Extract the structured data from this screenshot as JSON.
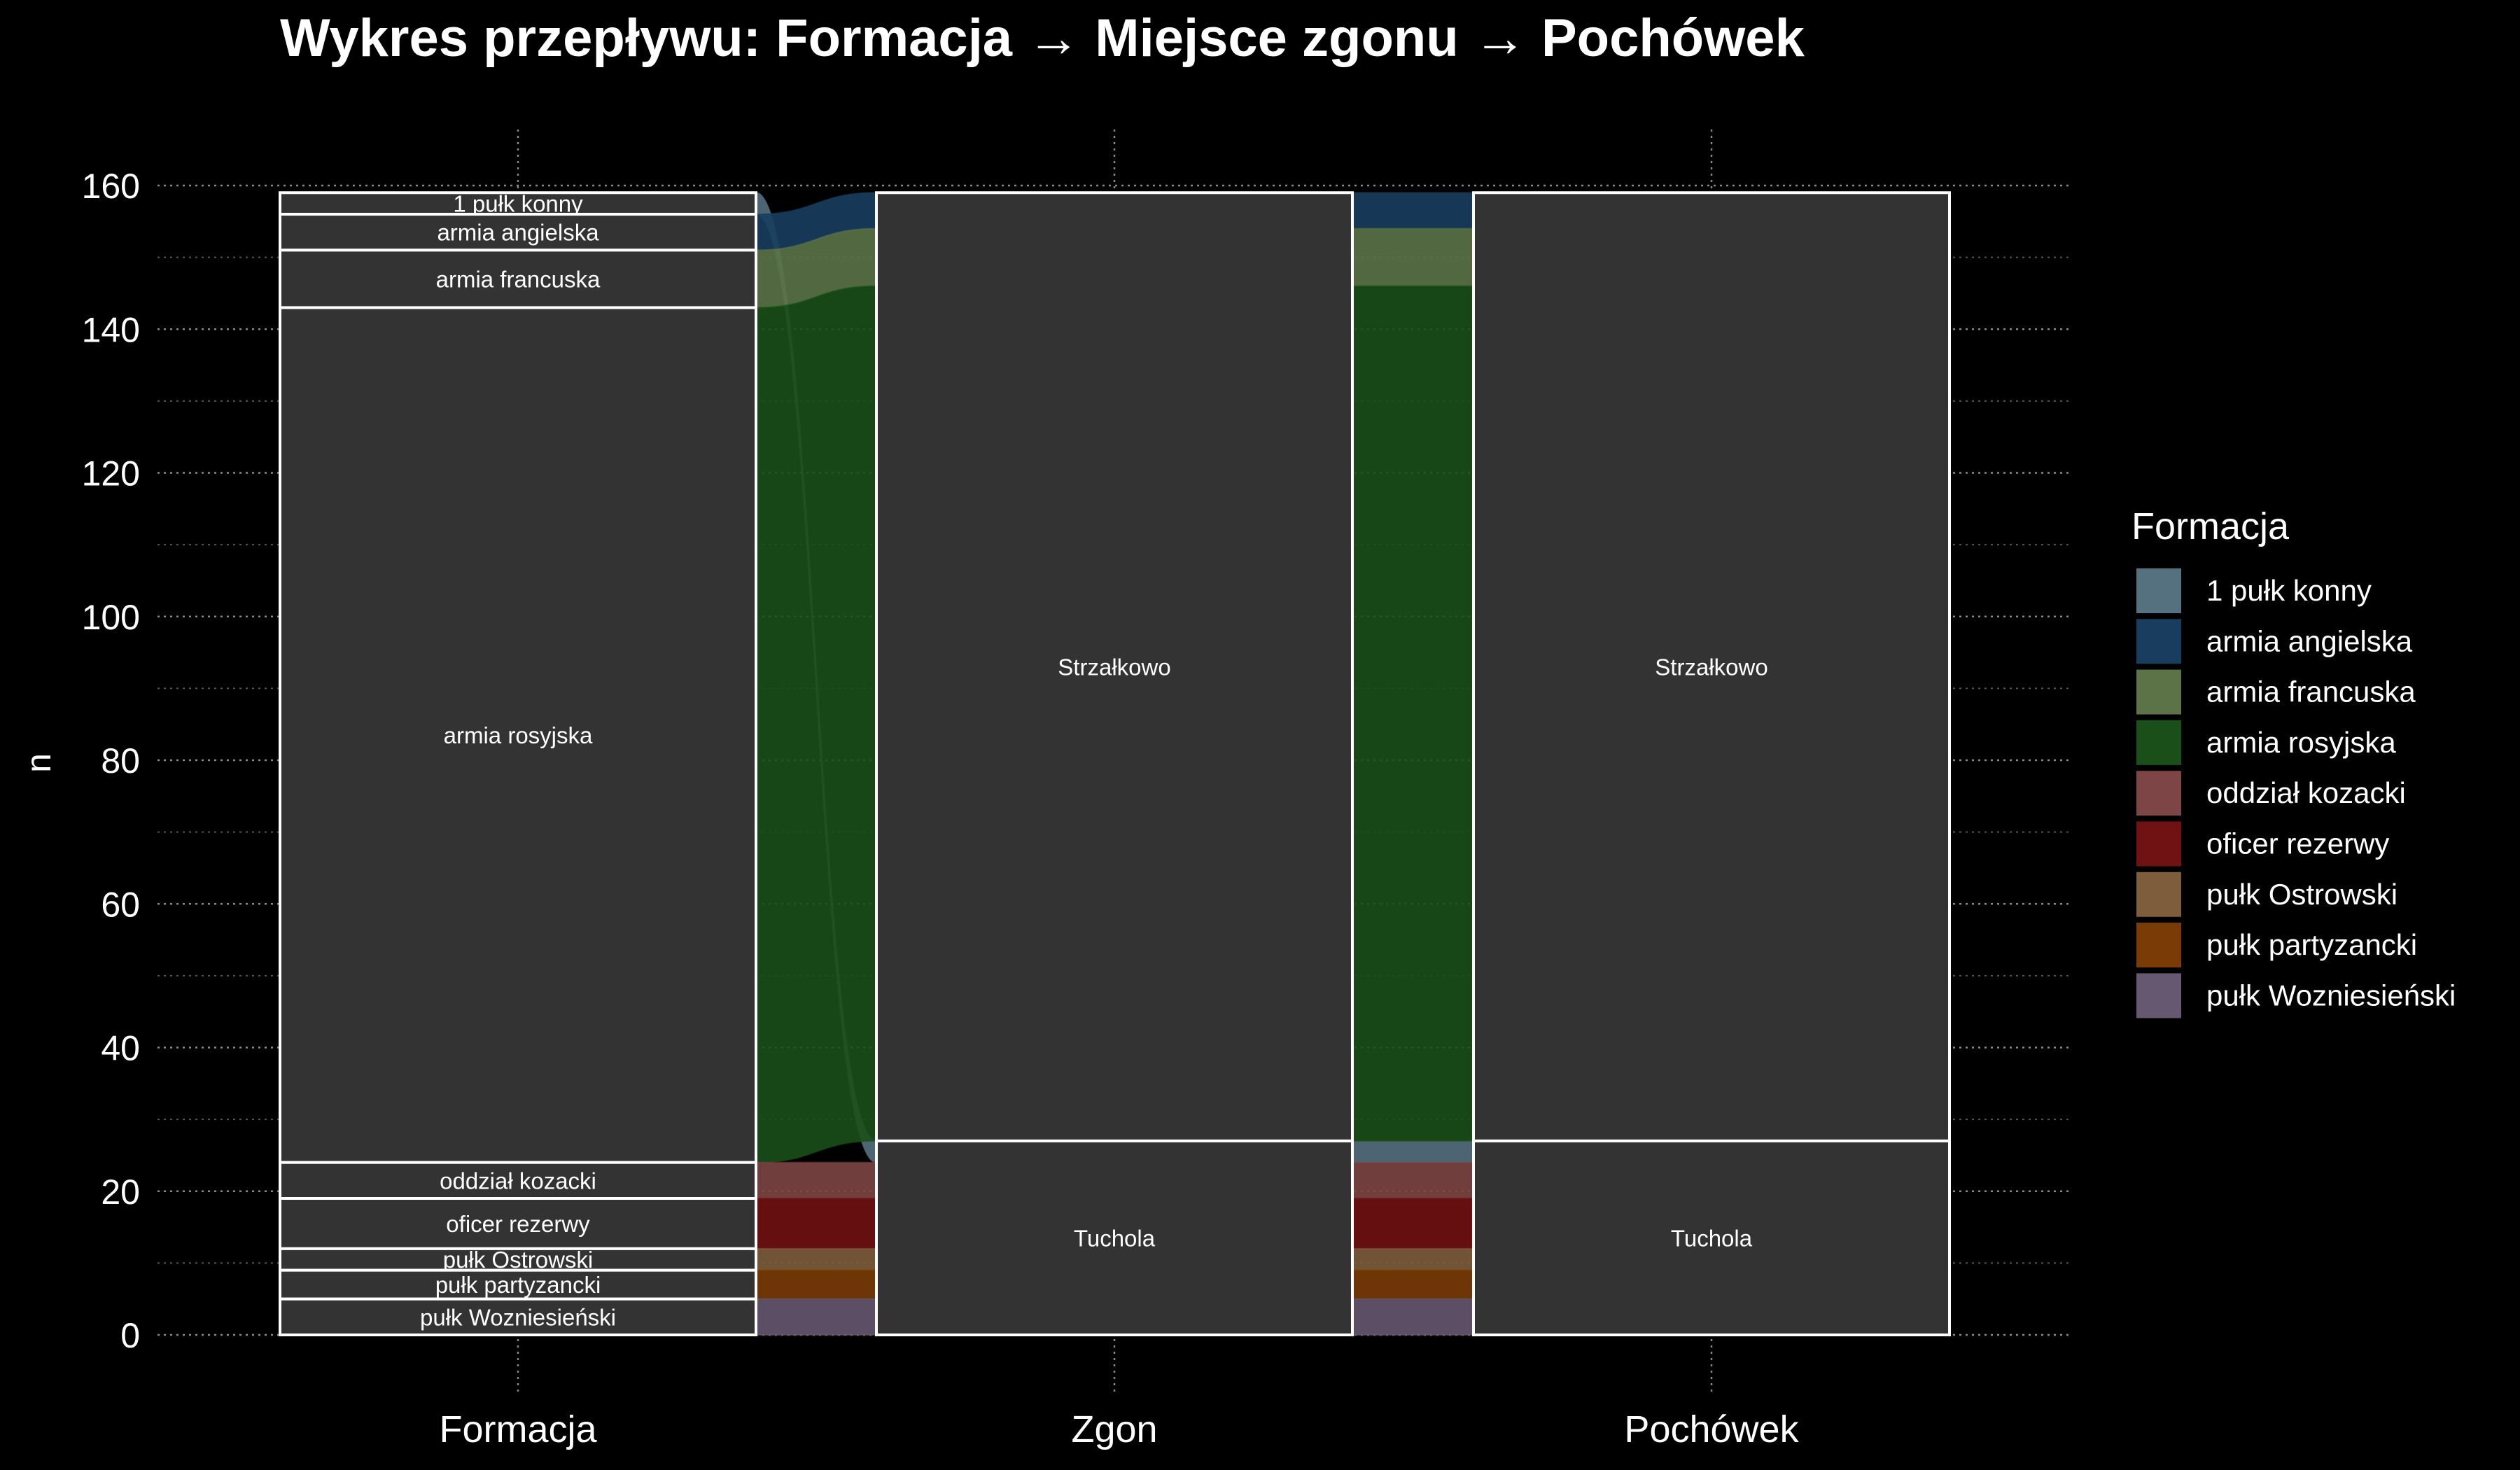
{
  "chart_data": {
    "type": "alluvial",
    "title": "Wykres przepływu: Formacja → Miejsce zgonu → Pochówek",
    "xlabel": "",
    "ylabel": "n",
    "ylim": [
      0,
      160
    ],
    "yticks": [
      0,
      20,
      40,
      60,
      80,
      100,
      120,
      140,
      160
    ],
    "grid": true,
    "axes": [
      "Formacja",
      "Zgon",
      "Pochówek"
    ],
    "legend": {
      "title": "Formacja",
      "position": "right",
      "entries": [
        {
          "name": "1 pułk konny",
          "color": "#55707f"
        },
        {
          "name": "armia angielska",
          "color": "#183d5e"
        },
        {
          "name": "armia francuska",
          "color": "#5b7347"
        },
        {
          "name": "armia rosyjska",
          "color": "#1b4f19"
        },
        {
          "name": "oddział kozacki",
          "color": "#7d4545"
        },
        {
          "name": "oficer rezerwy",
          "color": "#701113"
        },
        {
          "name": "pułk Ostrowski",
          "color": "#7d5d3b"
        },
        {
          "name": "pułk partyzancki",
          "color": "#7a3b07"
        },
        {
          "name": "pułk Wozniesieński",
          "color": "#665870"
        }
      ]
    },
    "strata": {
      "Formacja": [
        {
          "label": "1 pułk konny",
          "n": 3
        },
        {
          "label": "armia angielska",
          "n": 5
        },
        {
          "label": "armia francuska",
          "n": 8
        },
        {
          "label": "armia rosyjska",
          "n": 119
        },
        {
          "label": "oddział kozacki",
          "n": 5
        },
        {
          "label": "oficer rezerwy",
          "n": 7
        },
        {
          "label": "pułk Ostrowski",
          "n": 3
        },
        {
          "label": "pułk partyzancki",
          "n": 4
        },
        {
          "label": "pułk Wozniesieński",
          "n": 5
        }
      ],
      "Zgon": [
        {
          "label": "Strzałkowo",
          "n": 132
        },
        {
          "label": "Tuchola",
          "n": 27
        }
      ],
      "Pochówek": [
        {
          "label": "Strzałkowo",
          "n": 132
        },
        {
          "label": "Tuchola",
          "n": 27
        }
      ]
    },
    "flows": [
      {
        "formacja": "1 pułk konny",
        "zgon": "Tuchola",
        "pochowek": "Tuchola",
        "n": 3
      },
      {
        "formacja": "armia angielska",
        "zgon": "Strzałkowo",
        "pochowek": "Strzałkowo",
        "n": 5
      },
      {
        "formacja": "armia francuska",
        "zgon": "Strzałkowo",
        "pochowek": "Strzałkowo",
        "n": 8
      },
      {
        "formacja": "armia rosyjska",
        "zgon": "Strzałkowo",
        "pochowek": "Strzałkowo",
        "n": 119
      },
      {
        "formacja": "oddział kozacki",
        "zgon": "Tuchola",
        "pochowek": "Tuchola",
        "n": 5
      },
      {
        "formacja": "oficer rezerwy",
        "zgon": "Tuchola",
        "pochowek": "Tuchola",
        "n": 7
      },
      {
        "formacja": "pułk Ostrowski",
        "zgon": "Tuchola",
        "pochowek": "Tuchola",
        "n": 3
      },
      {
        "formacja": "pułk partyzancki",
        "zgon": "Tuchola",
        "pochowek": "Tuchola",
        "n": 4
      },
      {
        "formacja": "pułk Wozniesieński",
        "zgon": "Tuchola",
        "pochowek": "Tuchola",
        "n": 5
      }
    ]
  }
}
